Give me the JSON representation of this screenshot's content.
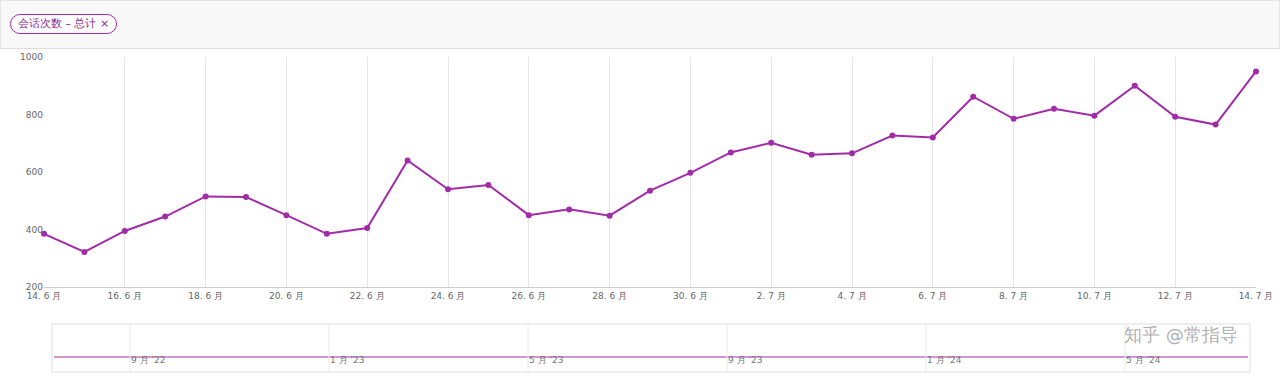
{
  "chart_data": {
    "type": "line",
    "filter_tag": "会话次数 – 总计 ×",
    "categories": [
      "14. 6 月",
      null,
      "16. 6 月",
      null,
      "18. 6 月",
      null,
      "20. 6 月",
      null,
      "22. 6 月",
      null,
      "24. 6 月",
      null,
      "26. 6 月",
      null,
      "28. 6 月",
      null,
      "30. 6 月",
      null,
      "2. 7 月",
      null,
      "4. 7 月",
      null,
      "6. 7 月",
      null,
      "8. 7 月",
      null,
      "10. 7 月",
      null,
      "12. 7 月",
      null,
      "14. 7 月"
    ],
    "values": [
      385,
      322,
      395,
      445,
      515,
      513,
      450,
      385,
      405,
      640,
      540,
      555,
      450,
      470,
      448,
      535,
      597,
      668,
      702,
      660,
      665,
      727,
      720,
      862,
      785,
      820,
      796,
      900,
      792,
      765,
      950
    ],
    "color": "#a22ca8",
    "marker": "circle",
    "ylim": [
      200,
      1000
    ],
    "yticks": [
      200,
      400,
      600,
      800,
      1000
    ],
    "grid": true,
    "navigator_labels": [
      "9 月 '22",
      "1 月 '23",
      "5 月 '23",
      "9 月 '23",
      "1 月 '24",
      "5 月 '24"
    ],
    "watermark": "知乎 @常指导"
  }
}
